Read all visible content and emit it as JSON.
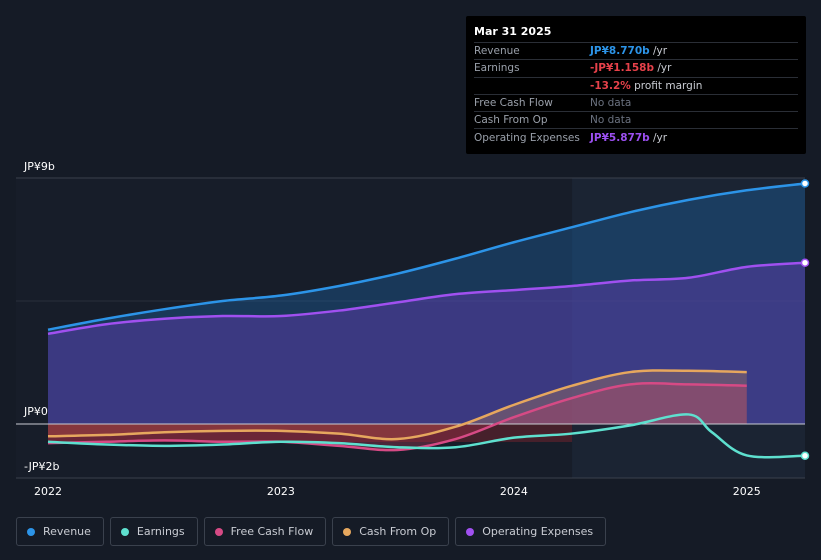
{
  "tooltip": {
    "date": "Mar 31 2025",
    "rows": [
      {
        "key": "Revenue",
        "value": "JP¥8.770b",
        "suffix": " /yr",
        "color": "#2c94e8"
      },
      {
        "key": "Earnings",
        "value": "-JP¥1.158b",
        "suffix": " /yr",
        "color": "#e6414a"
      },
      {
        "key": "",
        "value": "-13.2%",
        "suffix": " profit margin",
        "color": "#e6414a"
      },
      {
        "key": "Free Cash Flow",
        "value": "",
        "suffix": "No data",
        "color": "#6b7280"
      },
      {
        "key": "Cash From Op",
        "value": "",
        "suffix": "No data",
        "color": "#6b7280"
      },
      {
        "key": "Operating Expenses",
        "value": "JP¥5.877b",
        "suffix": " /yr",
        "color": "#9b4ff0"
      }
    ]
  },
  "axis": {
    "y_top": "JP¥9b",
    "y_zero": "JP¥0",
    "y_bottom": "-JP¥2b"
  },
  "legend": [
    {
      "label": "Revenue",
      "color": "#2c94e8"
    },
    {
      "label": "Earnings",
      "color": "#5ee0cf"
    },
    {
      "label": "Free Cash Flow",
      "color": "#d64a85"
    },
    {
      "label": "Cash From Op",
      "color": "#e6a75e"
    },
    {
      "label": "Operating Expenses",
      "color": "#a050f0"
    }
  ],
  "chart_data": {
    "type": "line",
    "ylim": [
      -2,
      9
    ],
    "y_unit": "JP¥b",
    "xticks": [
      {
        "label": "2022",
        "x": 2022.0
      },
      {
        "label": "2023",
        "x": 2023.0
      },
      {
        "label": "2024",
        "x": 2024.0
      },
      {
        "label": "2025",
        "x": 2025.0
      }
    ],
    "xlim": [
      2021.85,
      2025.25
    ],
    "highlight_start": 2024.25,
    "series": [
      {
        "name": "Revenue",
        "color": "#2c94e8",
        "fill": true,
        "points": [
          [
            2022.0,
            3.45
          ],
          [
            2022.25,
            3.85
          ],
          [
            2022.5,
            4.2
          ],
          [
            2022.75,
            4.5
          ],
          [
            2023.0,
            4.7
          ],
          [
            2023.25,
            5.05
          ],
          [
            2023.5,
            5.5
          ],
          [
            2023.75,
            6.05
          ],
          [
            2024.0,
            6.65
          ],
          [
            2024.25,
            7.2
          ],
          [
            2024.5,
            7.75
          ],
          [
            2024.75,
            8.2
          ],
          [
            2025.0,
            8.55
          ],
          [
            2025.25,
            8.8
          ]
        ]
      },
      {
        "name": "Operating Expenses",
        "color": "#a050f0",
        "fill": true,
        "points": [
          [
            2022.0,
            3.3
          ],
          [
            2022.25,
            3.65
          ],
          [
            2022.5,
            3.85
          ],
          [
            2022.75,
            3.95
          ],
          [
            2023.0,
            3.95
          ],
          [
            2023.25,
            4.15
          ],
          [
            2023.5,
            4.45
          ],
          [
            2023.75,
            4.75
          ],
          [
            2024.0,
            4.9
          ],
          [
            2024.25,
            5.05
          ],
          [
            2024.5,
            5.25
          ],
          [
            2024.75,
            5.35
          ],
          [
            2025.0,
            5.75
          ],
          [
            2025.25,
            5.9
          ]
        ]
      },
      {
        "name": "Cash From Op",
        "color": "#e6a75e",
        "fill": true,
        "points": [
          [
            2022.0,
            -0.45
          ],
          [
            2022.25,
            -0.4
          ],
          [
            2022.5,
            -0.3
          ],
          [
            2022.75,
            -0.25
          ],
          [
            2023.0,
            -0.25
          ],
          [
            2023.25,
            -0.35
          ],
          [
            2023.5,
            -0.55
          ],
          [
            2023.75,
            -0.1
          ],
          [
            2024.0,
            0.7
          ],
          [
            2024.25,
            1.4
          ],
          [
            2024.5,
            1.9
          ],
          [
            2024.75,
            1.95
          ],
          [
            2025.0,
            1.9
          ]
        ]
      },
      {
        "name": "Free Cash Flow",
        "color": "#d64a85",
        "fill": true,
        "points": [
          [
            2022.0,
            -0.7
          ],
          [
            2022.25,
            -0.65
          ],
          [
            2022.5,
            -0.6
          ],
          [
            2022.75,
            -0.65
          ],
          [
            2023.0,
            -0.65
          ],
          [
            2023.25,
            -0.8
          ],
          [
            2023.5,
            -0.95
          ],
          [
            2023.75,
            -0.55
          ],
          [
            2024.0,
            0.25
          ],
          [
            2024.25,
            0.95
          ],
          [
            2024.5,
            1.45
          ],
          [
            2024.75,
            1.45
          ],
          [
            2025.0,
            1.4
          ]
        ]
      },
      {
        "name": "Earnings",
        "color": "#5ee0cf",
        "fill": false,
        "points": [
          [
            2022.0,
            -0.65
          ],
          [
            2022.25,
            -0.75
          ],
          [
            2022.5,
            -0.8
          ],
          [
            2022.75,
            -0.75
          ],
          [
            2023.0,
            -0.65
          ],
          [
            2023.25,
            -0.7
          ],
          [
            2023.5,
            -0.85
          ],
          [
            2023.75,
            -0.85
          ],
          [
            2024.0,
            -0.5
          ],
          [
            2024.25,
            -0.35
          ],
          [
            2024.5,
            -0.05
          ],
          [
            2024.75,
            0.35
          ],
          [
            2024.85,
            -0.3
          ],
          [
            2025.0,
            -1.15
          ],
          [
            2025.25,
            -1.16
          ]
        ]
      }
    ]
  }
}
